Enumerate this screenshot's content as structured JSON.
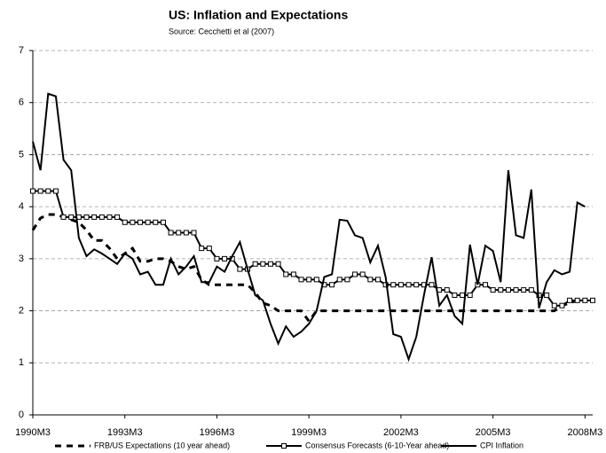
{
  "chart_data": {
    "type": "line",
    "title": "US: Inflation and Expectations",
    "subtitle": "Source: Cecchetti et al (2007)",
    "categories": [
      "1990M3",
      null,
      null,
      null,
      null,
      null,
      null,
      null,
      null,
      null,
      null,
      null,
      "1993M3",
      null,
      null,
      null,
      null,
      null,
      null,
      null,
      null,
      null,
      null,
      null,
      "1996M3",
      null,
      null,
      null,
      null,
      null,
      null,
      null,
      null,
      null,
      null,
      null,
      "1999M3",
      null,
      null,
      null,
      null,
      null,
      null,
      null,
      null,
      null,
      null,
      null,
      "2002M3",
      null,
      null,
      null,
      null,
      null,
      null,
      null,
      null,
      null,
      null,
      null,
      "2005M3",
      null,
      null,
      null,
      null,
      null,
      null,
      null,
      null,
      null,
      null,
      null,
      "2008M3",
      null
    ],
    "ylim": [
      0,
      7
    ],
    "yticks": [
      0,
      1,
      2,
      3,
      4,
      5,
      6,
      7
    ],
    "grid": true,
    "legend": "bottom",
    "series": [
      {
        "name": "FRB/US Expectations (10 year ahead)",
        "color": "#000000",
        "line_style": "dashed",
        "markers": "none",
        "values": [
          3.55,
          3.78,
          3.85,
          3.85,
          3.8,
          3.75,
          3.7,
          3.55,
          3.35,
          3.35,
          3.2,
          3.0,
          3.1,
          3.2,
          2.95,
          2.95,
          3.0,
          3.0,
          2.95,
          2.85,
          2.8,
          2.85,
          2.6,
          2.5,
          2.5,
          2.5,
          2.5,
          2.5,
          2.5,
          2.35,
          2.15,
          2.1,
          2.0,
          2.0,
          2.0,
          2.0,
          1.8,
          2.0,
          2.0,
          2.0,
          2.0,
          2.0,
          2.0,
          2.0,
          2.0,
          2.0,
          2.0,
          2.0,
          2.0,
          2.0,
          2.0,
          2.0,
          2.0,
          2.0,
          2.0,
          2.0,
          2.0,
          2.0,
          2.0,
          2.0,
          2.0,
          2.0,
          2.0,
          2.0,
          2.0,
          2.0,
          2.0,
          2.0,
          2.0,
          2.1,
          2.15,
          2.2,
          null,
          null
        ]
      },
      {
        "name": "Consensus Forecasts (6-10-Year ahead)",
        "color": "#000000",
        "line_style": "solid",
        "markers": "square",
        "values": [
          4.3,
          4.3,
          4.3,
          4.3,
          3.8,
          3.8,
          3.8,
          3.8,
          3.8,
          3.8,
          3.8,
          3.8,
          3.7,
          3.7,
          3.7,
          3.7,
          3.7,
          3.7,
          3.5,
          3.5,
          3.5,
          3.5,
          3.2,
          3.2,
          3.0,
          3.0,
          3.0,
          2.8,
          2.8,
          2.9,
          2.9,
          2.9,
          2.9,
          2.7,
          2.7,
          2.6,
          2.6,
          2.6,
          2.5,
          2.5,
          2.6,
          2.6,
          2.7,
          2.7,
          2.6,
          2.6,
          2.5,
          2.5,
          2.5,
          2.5,
          2.5,
          2.5,
          2.5,
          2.4,
          2.4,
          2.3,
          2.3,
          2.3,
          2.5,
          2.5,
          2.4,
          2.4,
          2.4,
          2.4,
          2.4,
          2.4,
          2.3,
          2.3,
          2.1,
          2.1,
          2.2,
          2.2,
          2.2,
          2.2
        ]
      },
      {
        "name": "CPI Inflation",
        "color": "#000000",
        "line_style": "solid",
        "markers": "none",
        "values": [
          5.25,
          4.7,
          6.17,
          6.12,
          4.9,
          4.7,
          3.4,
          3.05,
          3.18,
          3.1,
          3.0,
          2.9,
          3.1,
          3.0,
          2.7,
          2.75,
          2.5,
          2.5,
          3.0,
          2.7,
          2.85,
          3.05,
          2.55,
          2.55,
          2.85,
          2.75,
          3.05,
          3.32,
          2.8,
          2.3,
          2.2,
          1.75,
          1.37,
          1.7,
          1.5,
          1.6,
          1.75,
          2.0,
          2.65,
          2.7,
          3.75,
          3.73,
          3.45,
          3.4,
          2.93,
          3.25,
          2.65,
          1.55,
          1.5,
          1.07,
          1.5,
          2.3,
          3.03,
          2.1,
          2.3,
          1.9,
          1.75,
          3.27,
          2.5,
          3.25,
          3.15,
          2.55,
          4.7,
          3.45,
          3.4,
          4.33,
          2.05,
          2.55,
          2.78,
          2.7,
          2.75,
          4.08,
          4.0,
          null
        ]
      }
    ]
  }
}
